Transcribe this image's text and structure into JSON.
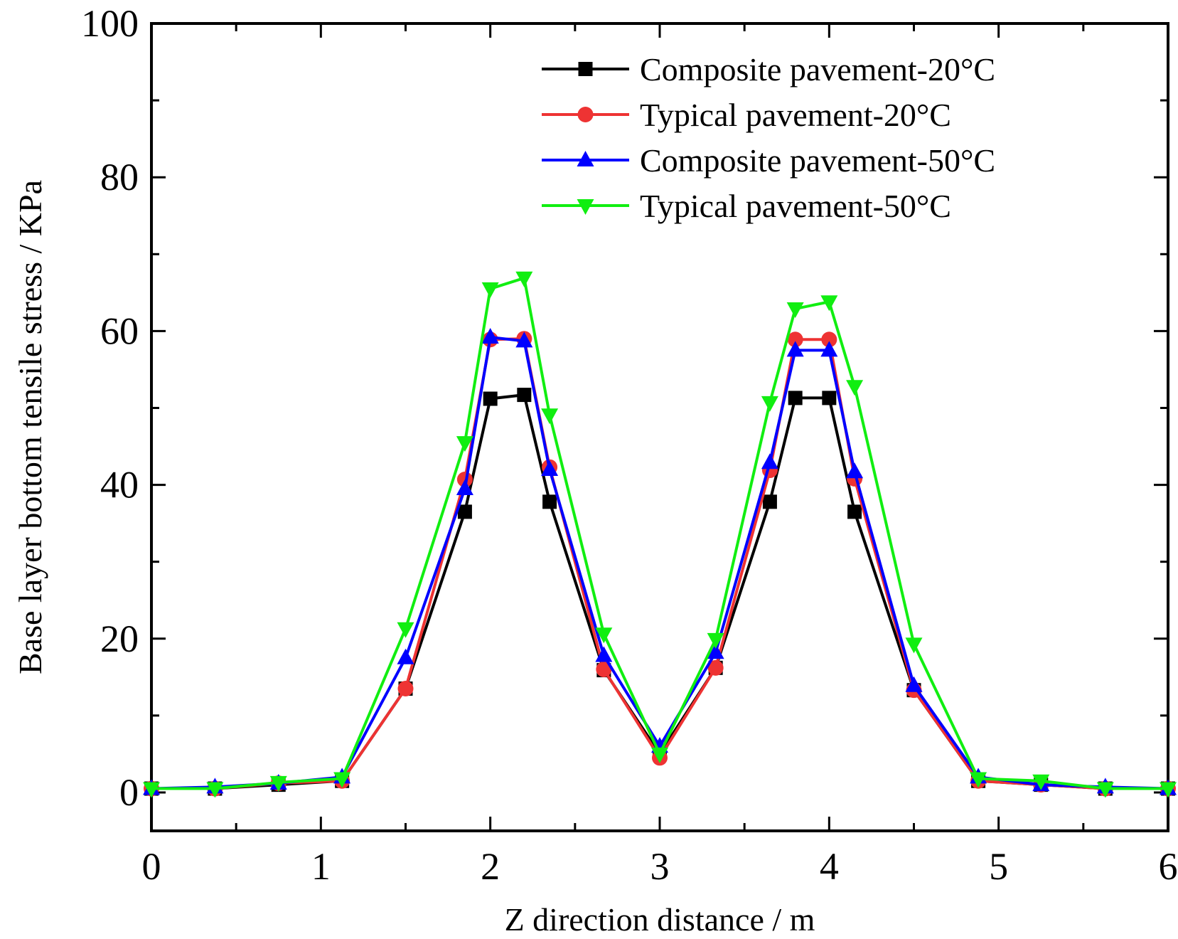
{
  "chart_data": {
    "type": "line",
    "title": "",
    "xlabel": "Z direction distance / m",
    "ylabel": "Base layer bottom tensile stress / KPa",
    "xlim": [
      0,
      6
    ],
    "ylim": [
      -5,
      100
    ],
    "xticks": [
      0,
      1,
      2,
      3,
      4,
      5,
      6
    ],
    "yticks": [
      0,
      20,
      40,
      60,
      80,
      100
    ],
    "xtick_labels": [
      "0",
      "1",
      "2",
      "3",
      "4",
      "5",
      "6"
    ],
    "ytick_labels": [
      "0",
      "20",
      "40",
      "60",
      "80",
      "100"
    ],
    "legend_position": "top-right",
    "grid": false,
    "x": [
      0,
      0.375,
      0.75,
      1.125,
      1.5,
      1.85,
      2.0,
      2.2,
      2.35,
      2.67,
      3.0,
      3.33,
      3.65,
      3.8,
      4.0,
      4.15,
      4.5,
      4.88,
      5.25,
      5.63,
      6.0
    ],
    "series": [
      {
        "name": "Composite pavement-20°C",
        "color": "#000000",
        "marker": "square",
        "values": [
          0.5,
          0.5,
          1.0,
          1.5,
          13.5,
          36.5,
          51.2,
          51.7,
          37.8,
          15.9,
          5.0,
          16.2,
          37.8,
          51.3,
          51.3,
          36.5,
          13.3,
          1.5,
          1.0,
          0.5,
          0.5
        ]
      },
      {
        "name": "Typical pavement-20°C",
        "color": "#ee3333",
        "marker": "circle",
        "values": [
          0.5,
          0.5,
          1.2,
          1.5,
          13.5,
          40.7,
          58.9,
          59.0,
          42.3,
          16.0,
          4.5,
          16.2,
          41.9,
          58.9,
          58.9,
          40.8,
          13.3,
          1.5,
          1.0,
          0.5,
          0.5
        ]
      },
      {
        "name": "Composite pavement-50°C",
        "color": "#0000ff",
        "marker": "triangle-up",
        "values": [
          0.5,
          0.7,
          1.2,
          2.0,
          17.5,
          39.5,
          59.2,
          58.7,
          42.0,
          17.8,
          6.0,
          18.2,
          42.9,
          57.5,
          57.5,
          41.7,
          13.9,
          2.0,
          1.0,
          0.7,
          0.5
        ]
      },
      {
        "name": "Typical pavement-50°C",
        "color": "#11ee11",
        "marker": "triangle-down",
        "values": [
          0.5,
          0.5,
          1.3,
          1.8,
          21.3,
          45.5,
          65.5,
          66.9,
          49.1,
          20.6,
          5.0,
          19.9,
          50.7,
          62.9,
          63.8,
          52.8,
          19.3,
          1.8,
          1.5,
          0.5,
          0.5
        ]
      }
    ]
  }
}
